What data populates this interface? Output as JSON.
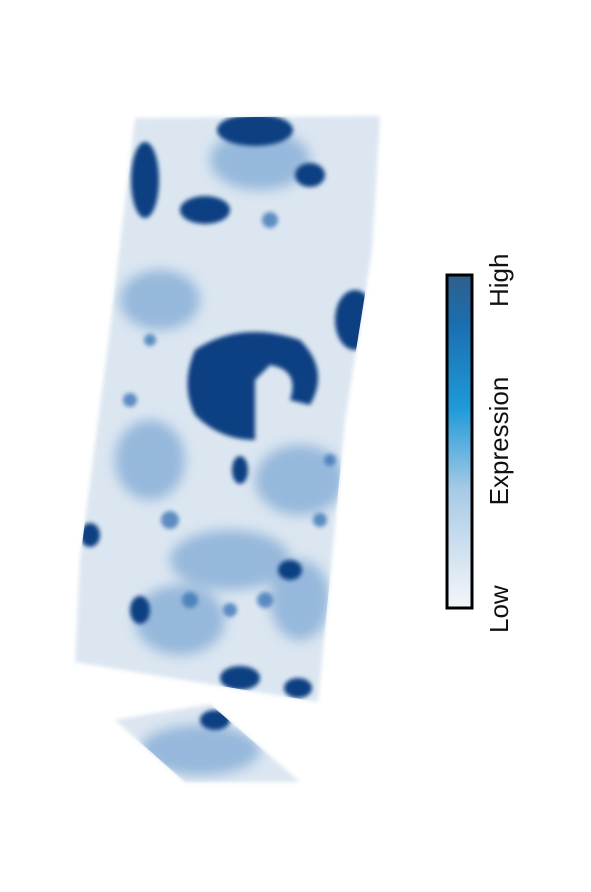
{
  "colorbar": {
    "title": "Expression",
    "low": "Low",
    "high": "High"
  }
}
